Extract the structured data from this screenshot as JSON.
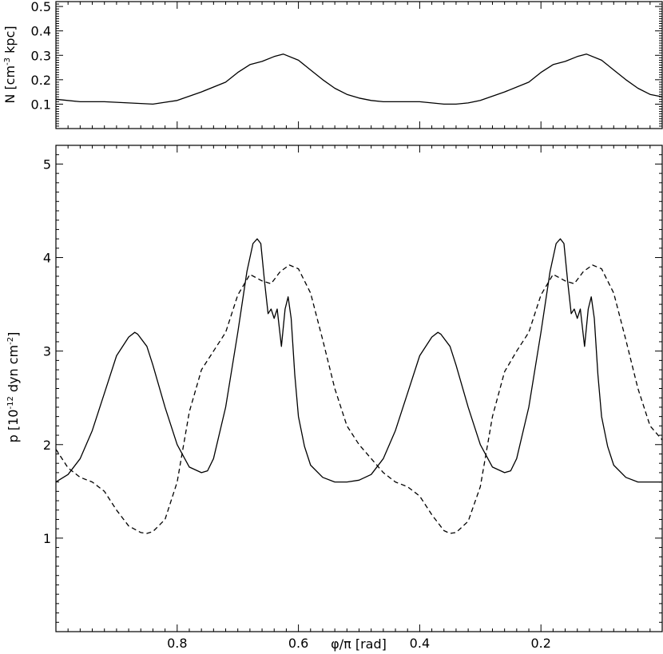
{
  "chart_data": [
    {
      "type": "line",
      "panel": "top",
      "ylabel_parts": [
        "N [cm",
        "-3",
        " kpc]"
      ],
      "xlim": [
        1.0,
        0.0
      ],
      "ylim": [
        0.0,
        0.52
      ],
      "yticks": [
        0.1,
        0.2,
        0.3,
        0.4,
        0.5
      ],
      "ytick_labels": [
        "0.1",
        "0.2",
        "0.3",
        "0.4",
        "0.5"
      ],
      "xticks": [
        0.8,
        0.6,
        0.4,
        0.2
      ],
      "grid": false,
      "series": [
        {
          "style": "solid",
          "x": [
            1.0,
            0.96,
            0.92,
            0.88,
            0.84,
            0.8,
            0.76,
            0.72,
            0.7,
            0.68,
            0.66,
            0.64,
            0.625,
            0.6,
            0.58,
            0.56,
            0.54,
            0.52,
            0.5,
            0.48,
            0.46,
            0.44,
            0.42,
            0.4,
            0.38,
            0.36,
            0.34,
            0.32,
            0.3,
            0.26,
            0.22,
            0.2,
            0.18,
            0.16,
            0.14,
            0.125,
            0.1,
            0.08,
            0.06,
            0.04,
            0.02,
            0.0
          ],
          "y": [
            0.12,
            0.11,
            0.11,
            0.105,
            0.1,
            0.115,
            0.15,
            0.19,
            0.23,
            0.262,
            0.275,
            0.295,
            0.305,
            0.28,
            0.24,
            0.2,
            0.165,
            0.14,
            0.125,
            0.115,
            0.11,
            0.11,
            0.11,
            0.11,
            0.105,
            0.1,
            0.1,
            0.105,
            0.115,
            0.15,
            0.19,
            0.23,
            0.262,
            0.275,
            0.295,
            0.305,
            0.28,
            0.24,
            0.2,
            0.165,
            0.14,
            0.13
          ]
        }
      ]
    },
    {
      "type": "line",
      "panel": "bottom",
      "xlabel": "φ/π [rad]",
      "ylabel_parts": [
        "p [10",
        "-12",
        " dyn cm",
        "-2",
        "]"
      ],
      "xlim": [
        1.0,
        0.0
      ],
      "ylim": [
        0.0,
        5.2
      ],
      "xticks": [
        0.8,
        0.6,
        0.4,
        0.2
      ],
      "xtick_labels": [
        "0.8",
        "0.6",
        "0.4",
        "0.2"
      ],
      "yticks": [
        1,
        2,
        3,
        4,
        5
      ],
      "ytick_labels": [
        "1",
        "2",
        "3",
        "4",
        "5"
      ],
      "grid": false,
      "series": [
        {
          "style": "solid",
          "x": [
            1.0,
            0.98,
            0.96,
            0.94,
            0.92,
            0.9,
            0.88,
            0.87,
            0.865,
            0.85,
            0.84,
            0.82,
            0.8,
            0.78,
            0.76,
            0.75,
            0.74,
            0.72,
            0.7,
            0.685,
            0.675,
            0.668,
            0.662,
            0.656,
            0.65,
            0.645,
            0.64,
            0.635,
            0.628,
            0.622,
            0.617,
            0.612,
            0.606,
            0.6,
            0.59,
            0.58,
            0.56,
            0.54,
            0.52,
            0.5,
            0.48,
            0.46,
            0.44,
            0.42,
            0.4,
            0.38,
            0.37,
            0.365,
            0.35,
            0.34,
            0.32,
            0.3,
            0.28,
            0.26,
            0.25,
            0.24,
            0.22,
            0.2,
            0.185,
            0.175,
            0.168,
            0.162,
            0.156,
            0.15,
            0.145,
            0.14,
            0.135,
            0.128,
            0.122,
            0.117,
            0.112,
            0.106,
            0.1,
            0.09,
            0.08,
            0.06,
            0.04,
            0.02,
            0.0
          ],
          "y": [
            1.6,
            1.68,
            1.85,
            2.15,
            2.55,
            2.95,
            3.15,
            3.2,
            3.18,
            3.05,
            2.85,
            2.4,
            2.0,
            1.76,
            1.7,
            1.72,
            1.85,
            2.4,
            3.2,
            3.85,
            4.15,
            4.2,
            4.15,
            3.75,
            3.4,
            3.45,
            3.35,
            3.45,
            3.05,
            3.45,
            3.58,
            3.35,
            2.75,
            2.3,
            1.98,
            1.78,
            1.65,
            1.6,
            1.6,
            1.62,
            1.68,
            1.85,
            2.15,
            2.55,
            2.95,
            3.15,
            3.2,
            3.18,
            3.05,
            2.85,
            2.4,
            2.0,
            1.76,
            1.7,
            1.72,
            1.85,
            2.4,
            3.2,
            3.85,
            4.15,
            4.2,
            4.15,
            3.75,
            3.4,
            3.45,
            3.35,
            3.45,
            3.05,
            3.45,
            3.58,
            3.35,
            2.75,
            2.3,
            1.98,
            1.78,
            1.65,
            1.6,
            1.6,
            1.6
          ]
        },
        {
          "style": "dashed",
          "x": [
            1.0,
            0.98,
            0.96,
            0.94,
            0.92,
            0.9,
            0.88,
            0.86,
            0.85,
            0.84,
            0.82,
            0.8,
            0.78,
            0.76,
            0.74,
            0.72,
            0.7,
            0.68,
            0.66,
            0.645,
            0.63,
            0.615,
            0.6,
            0.58,
            0.56,
            0.54,
            0.52,
            0.5,
            0.48,
            0.46,
            0.44,
            0.42,
            0.4,
            0.38,
            0.36,
            0.35,
            0.34,
            0.32,
            0.3,
            0.28,
            0.26,
            0.24,
            0.22,
            0.2,
            0.18,
            0.16,
            0.145,
            0.13,
            0.115,
            0.1,
            0.08,
            0.06,
            0.04,
            0.02,
            0.0
          ],
          "y": [
            1.95,
            1.75,
            1.65,
            1.6,
            1.5,
            1.3,
            1.13,
            1.06,
            1.05,
            1.07,
            1.2,
            1.6,
            2.35,
            2.8,
            3.0,
            3.2,
            3.6,
            3.82,
            3.75,
            3.72,
            3.85,
            3.92,
            3.88,
            3.62,
            3.12,
            2.6,
            2.2,
            2.0,
            1.85,
            1.7,
            1.6,
            1.55,
            1.45,
            1.25,
            1.08,
            1.05,
            1.06,
            1.18,
            1.55,
            2.3,
            2.78,
            3.0,
            3.2,
            3.6,
            3.82,
            3.75,
            3.72,
            3.85,
            3.92,
            3.88,
            3.62,
            3.12,
            2.6,
            2.2,
            2.05
          ]
        }
      ]
    }
  ]
}
